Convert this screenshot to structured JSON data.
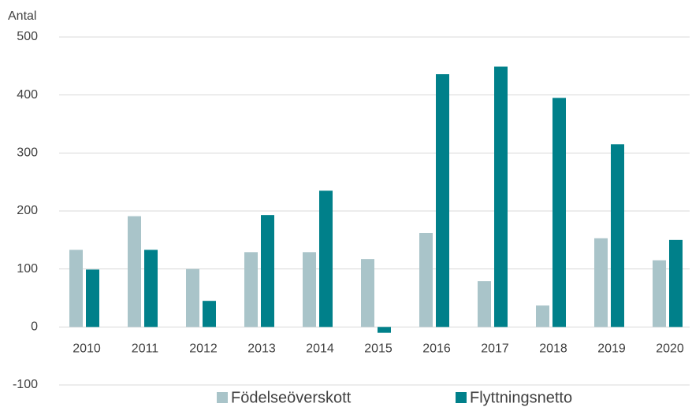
{
  "chart_data": {
    "type": "bar",
    "y_label": "Antal",
    "categories": [
      "2010",
      "2011",
      "2012",
      "2013",
      "2014",
      "2015",
      "2016",
      "2017",
      "2018",
      "2019",
      "2020"
    ],
    "series": [
      {
        "name": "Födelseöverskott",
        "color": "#a9c4c9",
        "values": [
          133,
          191,
          100,
          129,
          129,
          117,
          162,
          79,
          37,
          153,
          115
        ]
      },
      {
        "name": "Flyttningsnetto",
        "color": "#00808a",
        "values": [
          99,
          133,
          45,
          193,
          235,
          -10,
          436,
          449,
          395,
          315,
          150
        ]
      }
    ],
    "ylim": [
      -100,
      500
    ],
    "yticks": [
      -100,
      0,
      100,
      200,
      300,
      400,
      500
    ],
    "grid": true
  }
}
